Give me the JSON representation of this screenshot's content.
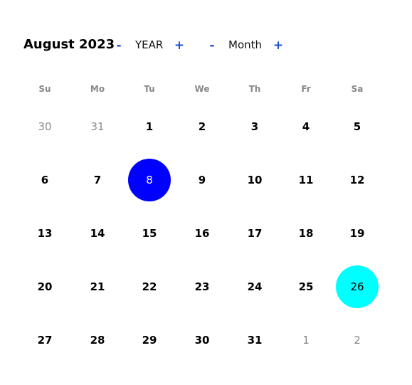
{
  "header": {
    "month_title": "August 2023",
    "year_label": "YEAR",
    "month_label": "Month",
    "decrement_symbol": "-",
    "increment_symbol": "+"
  },
  "weekdays": [
    "Su",
    "Mo",
    "Tu",
    "We",
    "Th",
    "Fr",
    "Sa"
  ],
  "weeks": [
    [
      "30",
      "31",
      "1",
      "2",
      "3",
      "4",
      "5"
    ],
    [
      "6",
      "7",
      "8",
      "9",
      "10",
      "11",
      "12"
    ],
    [
      "13",
      "14",
      "15",
      "16",
      "17",
      "18",
      "19"
    ],
    [
      "20",
      "21",
      "22",
      "23",
      "24",
      "25",
      "26"
    ],
    [
      "27",
      "28",
      "29",
      "30",
      "31",
      "1",
      "2"
    ]
  ],
  "other_month_cells": [
    [
      0,
      0
    ],
    [
      0,
      1
    ],
    [
      4,
      5
    ],
    [
      4,
      6
    ]
  ],
  "highlights": {
    "selected": {
      "week": 1,
      "day": 2,
      "color": "#0000ff"
    },
    "today": {
      "week": 3,
      "day": 6,
      "color": "#00ffff"
    }
  },
  "colors": {
    "accent": "#1a4fd6",
    "selected": "#0000ff",
    "today": "#00ffff",
    "other_month_text": "#8a8a8a",
    "weekday_text": "#888888"
  }
}
